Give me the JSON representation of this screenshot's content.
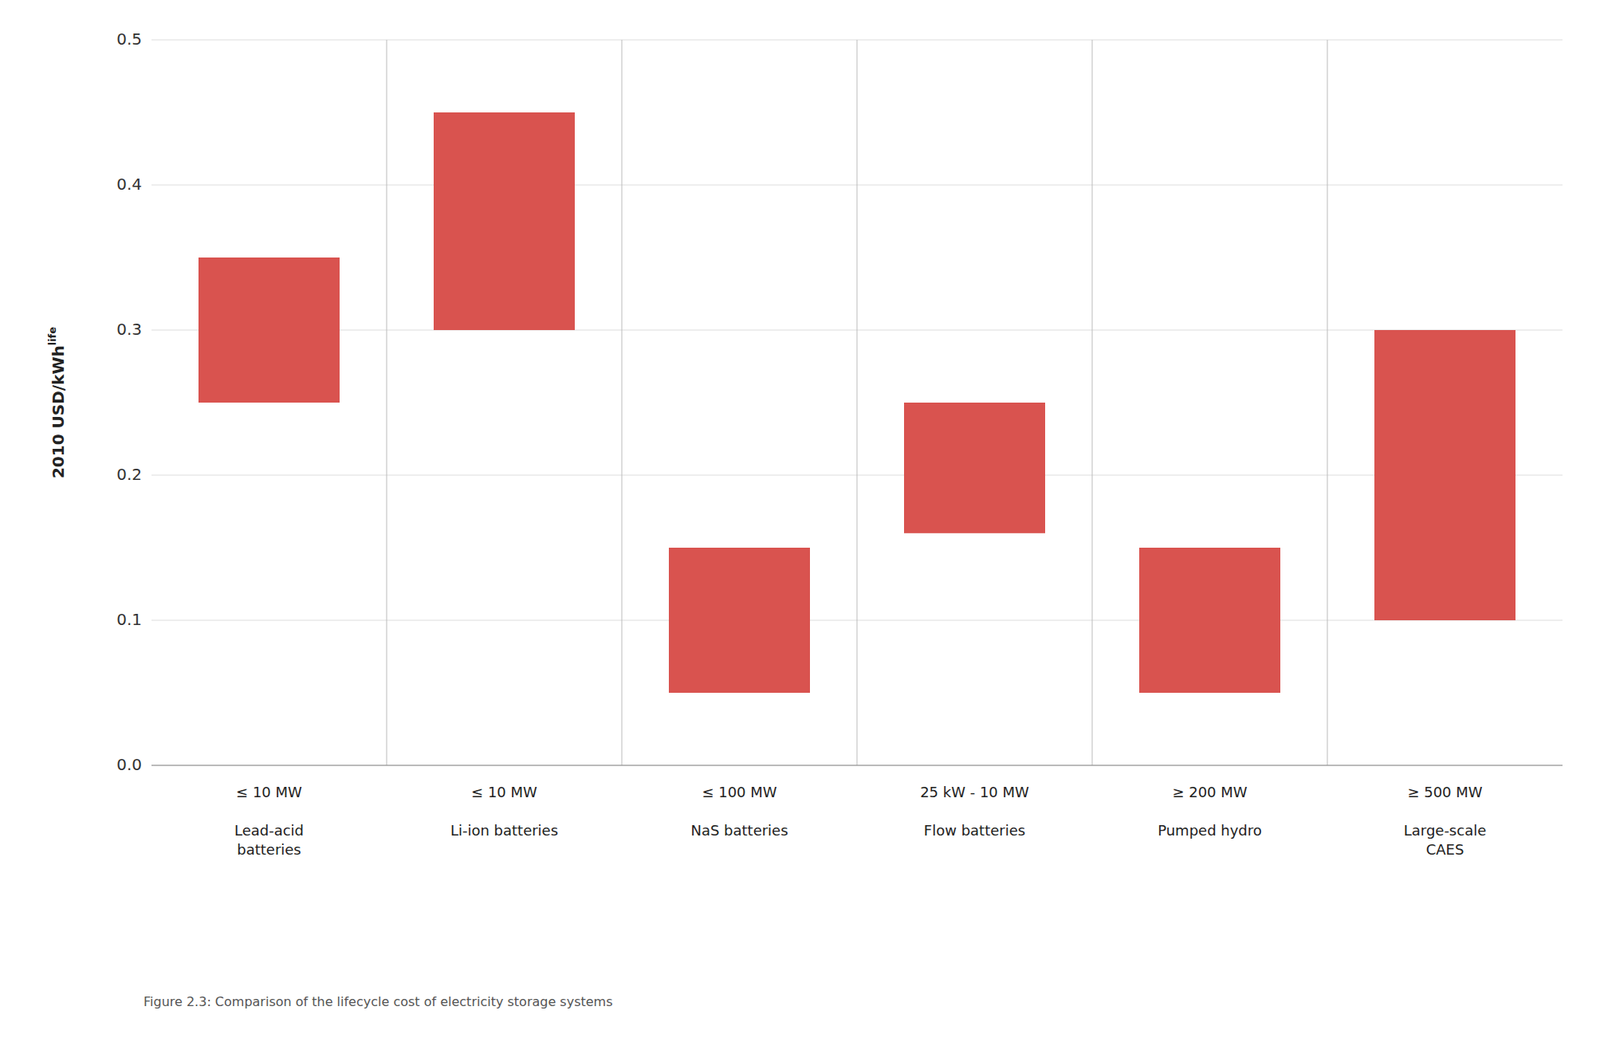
{
  "chart_data": {
    "type": "bar",
    "categories": [
      "≤ 10 MW\nLead-acid\nbatteries",
      "≤ 10 MW\nLi-ion batteries",
      "≤ 100 MW\nNaS batteries",
      "25 kW - 10 MW\nFlow batteries",
      "≥ 200 MW\nPumped hydro",
      "≥ 500 MW\nLarge-scale\nCAES"
    ],
    "values": [
      [
        0.25,
        0.35
      ],
      [
        0.3,
        0.45
      ],
      [
        0.05,
        0.15
      ],
      [
        0.16,
        0.25
      ],
      [
        0.05,
        0.15
      ],
      [
        0.1,
        0.3
      ]
    ],
    "color": "#d9534f",
    "y_label": "2010 USD/kWh",
    "y_label_superscript": "life",
    "caption": "Figure 2.3: Comparison of the lifecycle cost of electricity storage systems",
    "ylim": [
      0.0,
      0.5
    ],
    "yticks": [
      {
        "value": 0.0,
        "label": "0.0"
      },
      0.1,
      0.2,
      0.3,
      0.4,
      0.5
    ],
    "grid": true
  }
}
